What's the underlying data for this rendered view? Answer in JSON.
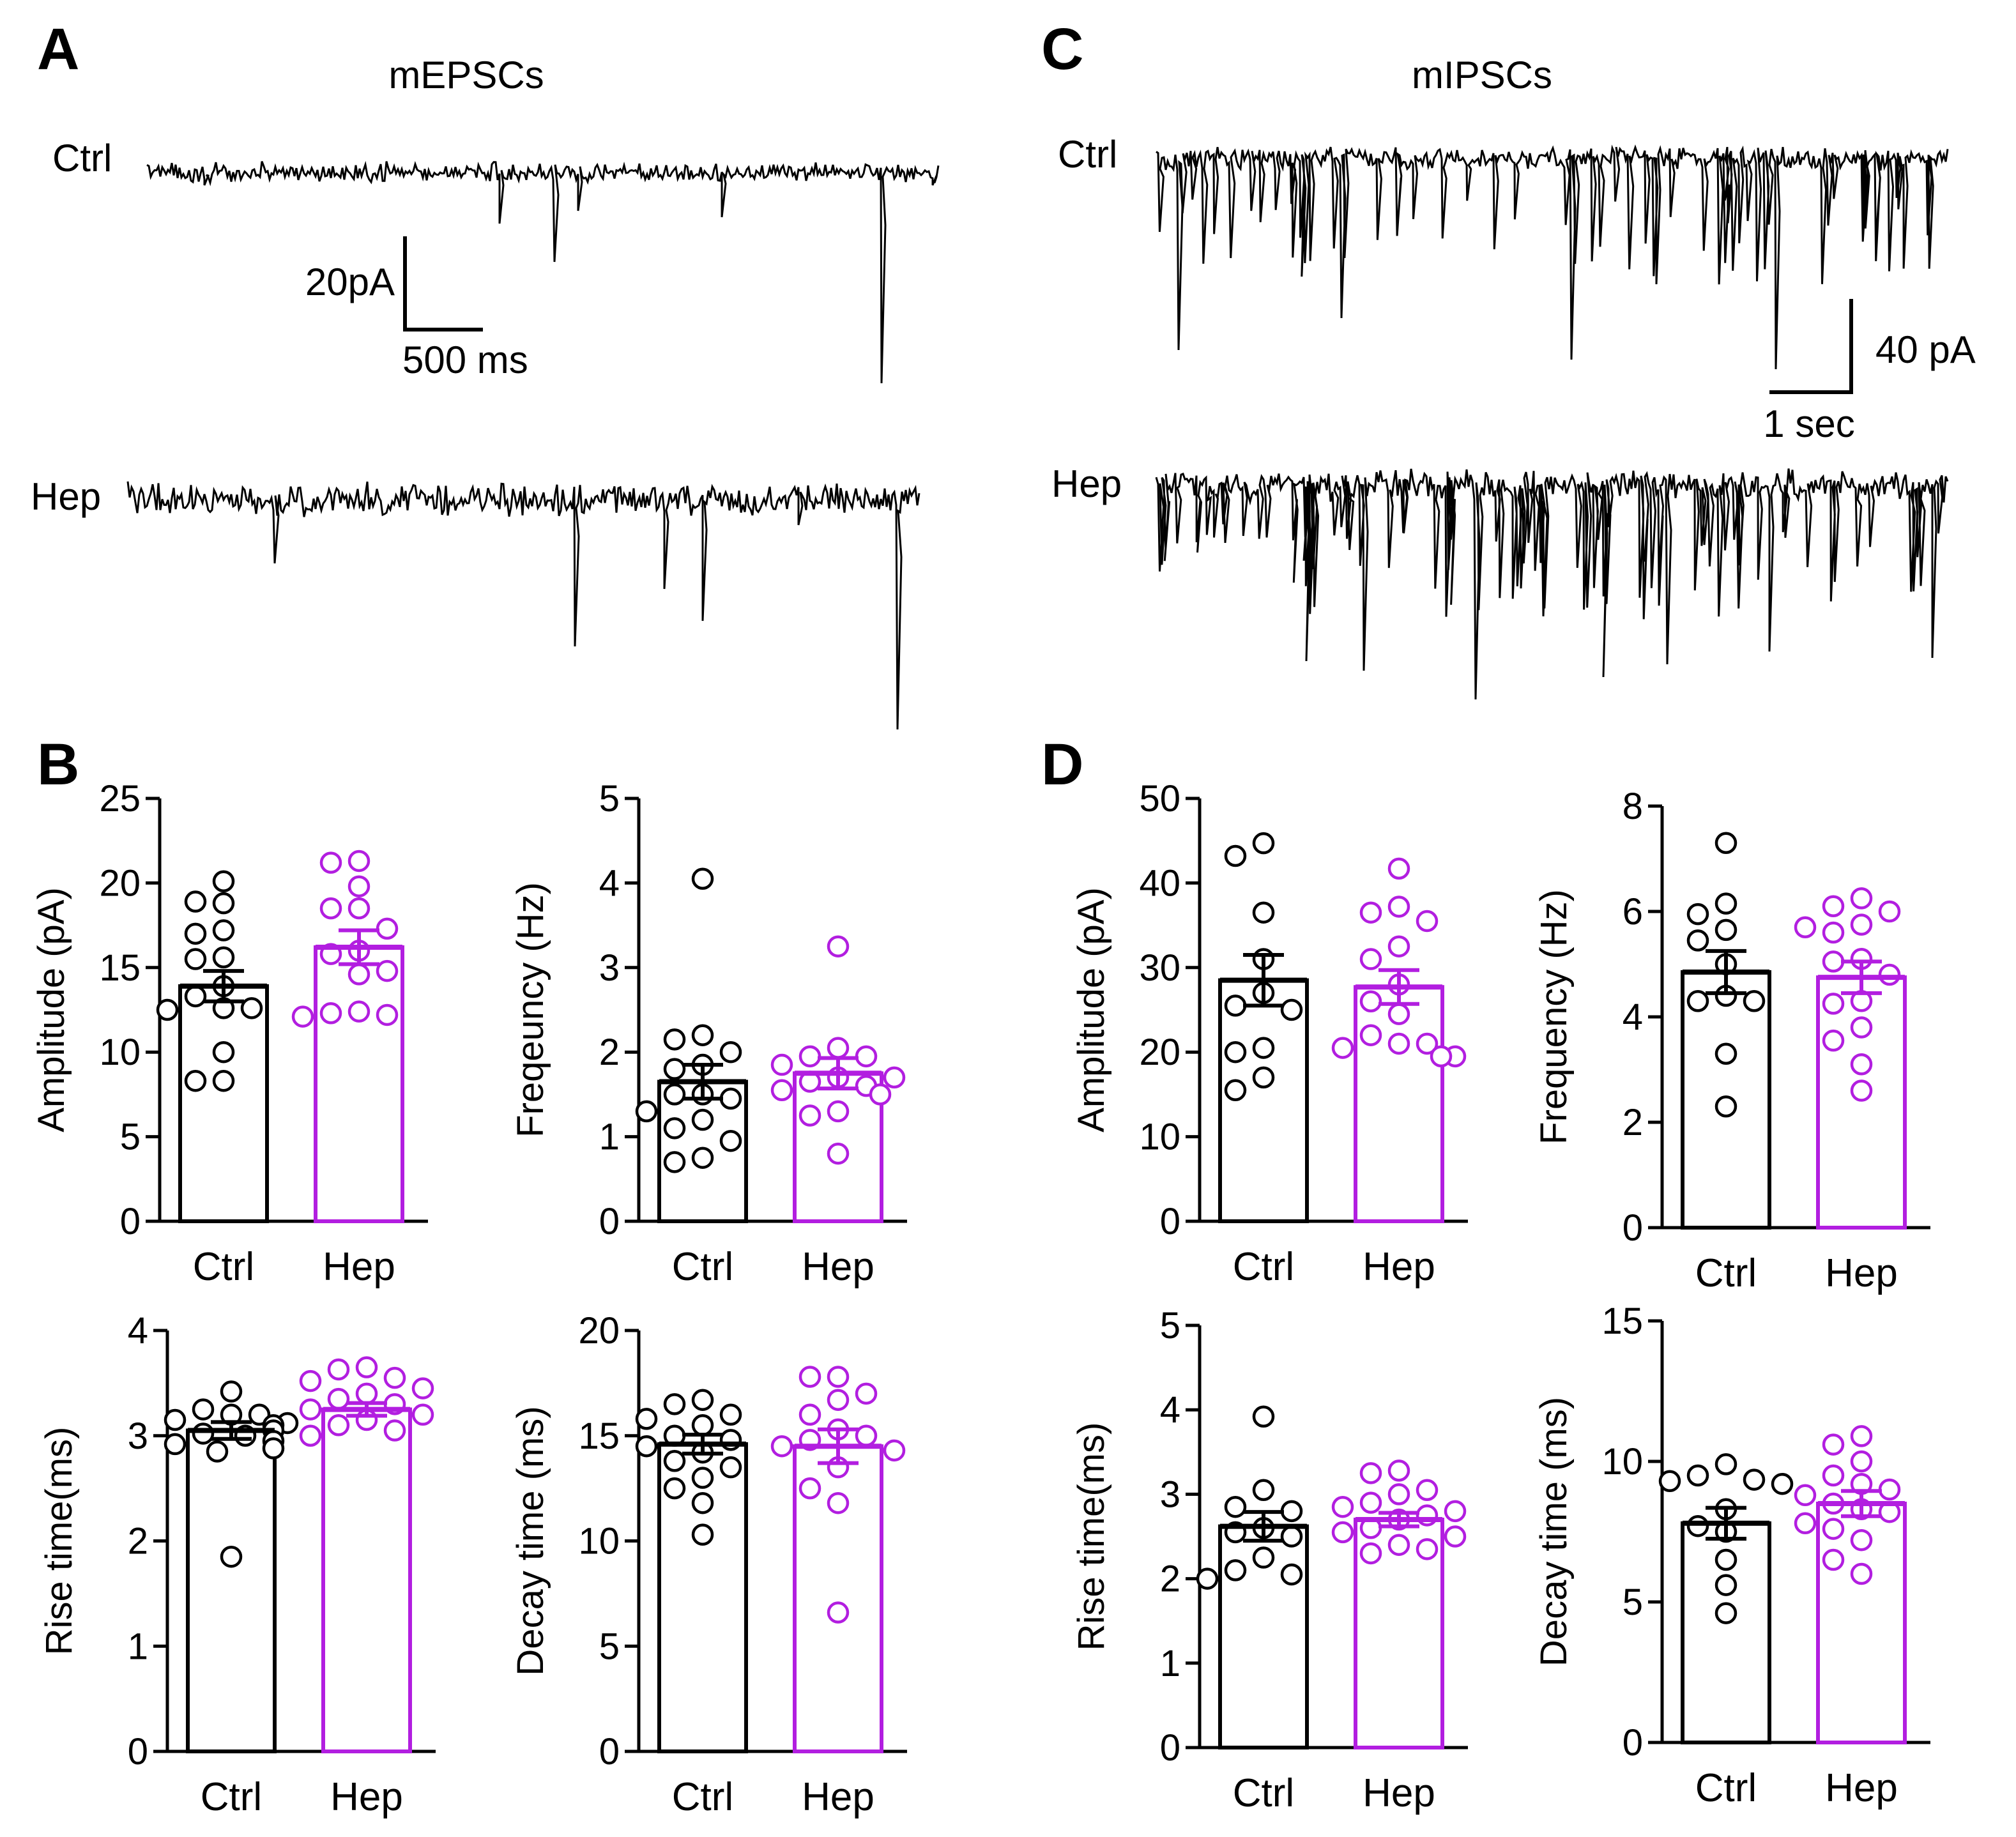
{
  "colors": {
    "ctrl": "#000000",
    "hep": "#B21EE0"
  },
  "panels": {
    "A": {
      "letter": "A",
      "title": "mEPSCs",
      "trace_labels": [
        "Ctrl",
        "Hep"
      ],
      "scalebar": {
        "y_label": "20pA",
        "x_label": "500 ms"
      }
    },
    "C": {
      "letter": "C",
      "title": "mIPSCs",
      "trace_labels": [
        "Ctrl",
        "Hep"
      ],
      "scalebar": {
        "y_label": "40 pA",
        "x_label": "1 sec"
      }
    },
    "B": {
      "letter": "B"
    },
    "D": {
      "letter": "D"
    }
  },
  "chart_data": [
    {
      "id": "B-amplitude",
      "type": "bar",
      "panel": "B",
      "categories": [
        "Ctrl",
        "Hep"
      ],
      "ylabel": "Amplitude (pA)",
      "ylim": [
        0,
        25
      ],
      "yticks": [
        0,
        5,
        10,
        15,
        20,
        25
      ],
      "values": [
        13.9,
        16.2
      ],
      "sem": [
        0.9,
        1.0
      ],
      "points": [
        [
          20.1,
          18.9,
          18.8,
          17.2,
          17.0,
          15.6,
          15.5,
          13.9,
          13.3,
          12.5,
          12.6,
          12.6,
          10.0,
          8.3,
          8.3
        ],
        [
          21.3,
          21.2,
          19.8,
          18.5,
          18.5,
          17.3,
          16.0,
          15.8,
          14.8,
          14.6,
          12.3,
          12.1,
          12.4,
          12.2
        ]
      ]
    },
    {
      "id": "B-frequency",
      "type": "bar",
      "panel": "B",
      "categories": [
        "Ctrl",
        "Hep"
      ],
      "ylabel": "Freqeuncy (Hz)",
      "ylim": [
        0,
        5
      ],
      "yticks": [
        0,
        1,
        2,
        3,
        4,
        5
      ],
      "values": [
        1.65,
        1.75
      ],
      "sem": [
        0.2,
        0.18
      ],
      "points": [
        [
          4.05,
          2.2,
          2.15,
          2.0,
          1.85,
          1.8,
          1.5,
          1.5,
          1.45,
          1.3,
          1.2,
          1.1,
          0.95,
          0.7,
          0.75
        ],
        [
          3.25,
          1.95,
          1.95,
          2.05,
          1.85,
          1.7,
          1.65,
          1.7,
          1.6,
          1.55,
          1.5,
          1.3,
          1.25,
          0.8
        ]
      ]
    },
    {
      "id": "B-rise",
      "type": "bar",
      "panel": "B",
      "categories": [
        "Ctrl",
        "Hep"
      ],
      "ylabel": "Rise time(ms)",
      "ylim": [
        0,
        4
      ],
      "yticks": [
        0,
        1,
        2,
        3,
        4
      ],
      "values": [
        3.05,
        3.25
      ],
      "sem": [
        0.08,
        0.06
      ],
      "points": [
        [
          3.42,
          3.25,
          3.2,
          3.2,
          3.15,
          3.12,
          3.1,
          3.05,
          3.02,
          3.0,
          2.95,
          2.92,
          2.88,
          2.85,
          1.85
        ],
        [
          3.65,
          3.63,
          3.55,
          3.52,
          3.45,
          3.4,
          3.35,
          3.3,
          3.25,
          3.2,
          3.15,
          3.1,
          3.05,
          3.0
        ]
      ]
    },
    {
      "id": "B-decay",
      "type": "bar",
      "panel": "B",
      "categories": [
        "Ctrl",
        "Hep"
      ],
      "ylabel": "Decay time (ms)",
      "ylim": [
        0,
        20
      ],
      "yticks": [
        0,
        5,
        10,
        15,
        20
      ],
      "values": [
        14.6,
        14.5
      ],
      "sem": [
        0.45,
        0.8
      ],
      "points": [
        [
          16.7,
          16.5,
          16.0,
          15.8,
          15.5,
          15.0,
          14.8,
          14.5,
          14.2,
          13.8,
          13.5,
          13.0,
          12.5,
          11.8,
          10.3
        ],
        [
          17.8,
          17.8,
          17.0,
          16.7,
          16.0,
          15.3,
          15.0,
          14.8,
          14.5,
          14.3,
          13.5,
          12.5,
          11.8,
          6.6
        ]
      ]
    },
    {
      "id": "D-amplitude",
      "type": "bar",
      "panel": "D",
      "categories": [
        "Ctrl",
        "Hep"
      ],
      "ylabel": "Amplitude (pA)",
      "ylim": [
        0,
        50
      ],
      "yticks": [
        0,
        10,
        20,
        30,
        40,
        50
      ],
      "values": [
        28.5,
        27.7
      ],
      "sem": [
        3.0,
        2.0
      ],
      "points": [
        [
          44.7,
          43.2,
          36.5,
          31.0,
          27.0,
          25.5,
          25.0,
          20.5,
          20.0,
          17.0,
          15.5
        ],
        [
          41.7,
          37.2,
          36.5,
          35.5,
          32.5,
          31.0,
          28.0,
          26.0,
          24.5,
          22.0,
          21.0,
          21.0,
          20.5,
          19.5,
          19.5
        ]
      ]
    },
    {
      "id": "D-frequency",
      "type": "bar",
      "panel": "D",
      "categories": [
        "Ctrl",
        "Hep"
      ],
      "ylabel": "Frequency (Hz)",
      "ylim": [
        0,
        8
      ],
      "yticks": [
        0,
        2,
        4,
        6,
        8
      ],
      "values": [
        4.85,
        4.75
      ],
      "sem": [
        0.4,
        0.3
      ],
      "points": [
        [
          7.3,
          6.15,
          5.95,
          5.65,
          5.45,
          5.0,
          4.4,
          4.3,
          4.3,
          3.3,
          2.3
        ],
        [
          6.25,
          6.1,
          6.0,
          5.75,
          5.7,
          5.6,
          5.1,
          5.05,
          4.8,
          4.3,
          4.25,
          3.8,
          3.55,
          3.1,
          2.6
        ]
      ]
    },
    {
      "id": "D-rise",
      "type": "bar",
      "panel": "D",
      "categories": [
        "Ctrl",
        "Hep"
      ],
      "ylabel": "Rise time(ms)",
      "ylim": [
        0,
        5
      ],
      "yticks": [
        0,
        1,
        2,
        3,
        4,
        5
      ],
      "values": [
        2.62,
        2.7
      ],
      "sem": [
        0.17,
        0.08
      ],
      "points": [
        [
          3.92,
          3.05,
          2.85,
          2.8,
          2.6,
          2.55,
          2.5,
          2.25,
          2.1,
          2.05,
          2.0
        ],
        [
          3.28,
          3.25,
          3.05,
          3.0,
          2.9,
          2.85,
          2.8,
          2.75,
          2.7,
          2.6,
          2.55,
          2.5,
          2.4,
          2.35,
          2.3
        ]
      ]
    },
    {
      "id": "D-decay",
      "type": "bar",
      "panel": "D",
      "categories": [
        "Ctrl",
        "Hep"
      ],
      "ylabel": "Decay time (ms)",
      "ylim": [
        0,
        15
      ],
      "yticks": [
        0,
        5,
        10,
        15
      ],
      "values": [
        7.8,
        8.5
      ],
      "sem": [
        0.55,
        0.45
      ],
      "points": [
        [
          9.9,
          9.5,
          9.3,
          9.35,
          9.2,
          8.3,
          7.7,
          7.5,
          6.5,
          5.6,
          4.6
        ],
        [
          10.9,
          10.6,
          10.0,
          9.5,
          9.2,
          9.0,
          8.8,
          8.5,
          8.3,
          8.2,
          7.8,
          7.6,
          7.2,
          6.5,
          6.0
        ]
      ]
    }
  ]
}
